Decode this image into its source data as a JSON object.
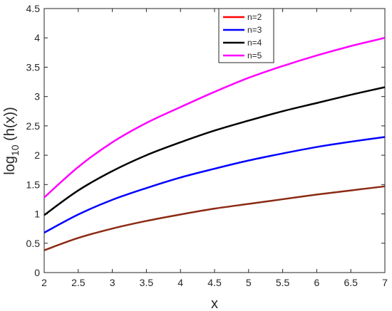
{
  "chart_data": {
    "type": "line",
    "xlabel": "x",
    "ylabel": "log",
    "ylabel_sub": "10",
    "ylabel_rest": " (h(x))",
    "xlim": [
      2,
      7
    ],
    "ylim": [
      0,
      4.5
    ],
    "x_ticks": [
      "2",
      "2.5",
      "3",
      "3.5",
      "4",
      "4.5",
      "5",
      "5.5",
      "6",
      "6.5",
      "7"
    ],
    "y_ticks": [
      "0",
      "0.5",
      "1",
      "1.5",
      "2",
      "2.5",
      "3",
      "3.5",
      "4",
      "4.5"
    ],
    "grid": false,
    "legend_position": "top-right",
    "x": [
      2,
      2.5,
      3,
      3.5,
      4,
      4.5,
      5,
      5.5,
      6,
      6.5,
      7
    ],
    "series": [
      {
        "name": "n=2",
        "color": "#ff0000",
        "values": [
          0.38,
          0.59,
          0.75,
          0.88,
          0.99,
          1.09,
          1.17,
          1.25,
          1.33,
          1.4,
          1.47
        ]
      },
      {
        "name": "n=3",
        "color": "#0000ff",
        "values": [
          0.68,
          0.99,
          1.24,
          1.44,
          1.62,
          1.77,
          1.91,
          2.03,
          2.14,
          2.23,
          2.31
        ]
      },
      {
        "name": "n=4",
        "color": "#000000",
        "values": [
          0.98,
          1.4,
          1.73,
          2.0,
          2.22,
          2.42,
          2.59,
          2.75,
          2.89,
          3.03,
          3.16
        ]
      },
      {
        "name": "n=5",
        "color": "#ff00ff",
        "values": [
          1.28,
          1.8,
          2.22,
          2.55,
          2.82,
          3.08,
          3.32,
          3.52,
          3.7,
          3.86,
          4.0
        ]
      }
    ]
  }
}
